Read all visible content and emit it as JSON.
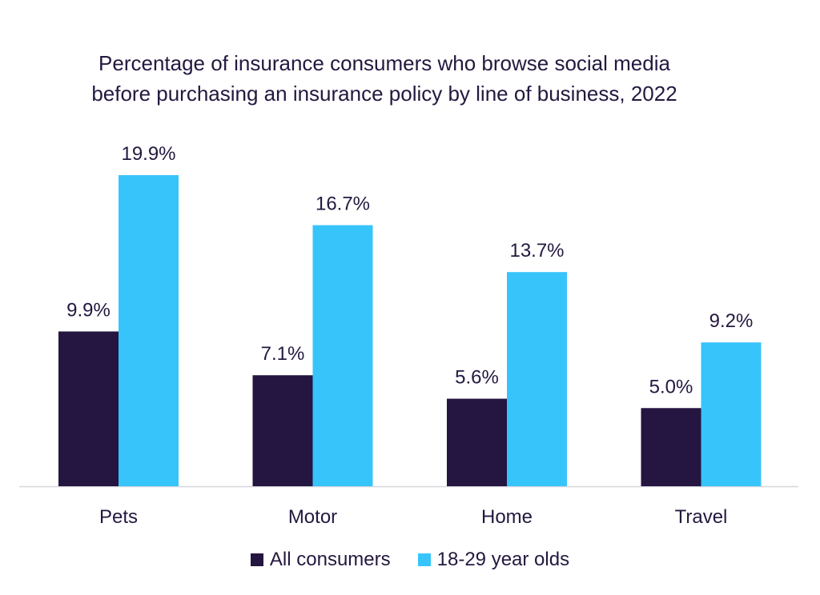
{
  "chart_data": {
    "type": "bar",
    "title_lines": [
      "Percentage of insurance consumers who browse social media",
      "before purchasing an insurance policy by line of business, 2022"
    ],
    "categories": [
      "Pets",
      "Motor",
      "Home",
      "Travel"
    ],
    "series": [
      {
        "name": "All consumers",
        "color": "#251541",
        "values": [
          9.9,
          7.1,
          5.6,
          5.0
        ],
        "labels": [
          "9.9%",
          "7.1%",
          "5.6%",
          "5.0%"
        ]
      },
      {
        "name": "18-29 year olds",
        "color": "#37c4fb",
        "values": [
          19.9,
          16.7,
          13.7,
          9.2
        ],
        "labels": [
          "19.9%",
          "16.7%",
          "13.7%",
          "9.2%"
        ]
      }
    ],
    "ylim": [
      0,
      19.9
    ],
    "grid": false,
    "legend_position": "bottom"
  }
}
